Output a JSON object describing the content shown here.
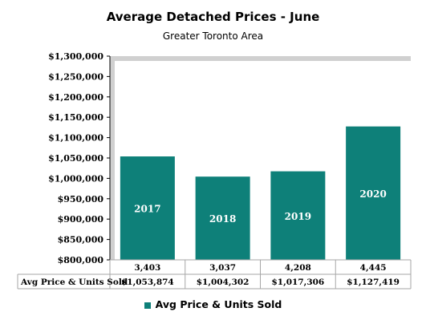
{
  "chart_data": {
    "type": "bar",
    "title": "Average Detached Prices - June",
    "subtitle": "Greater Toronto Area",
    "categories": [
      "2017",
      "2018",
      "2019",
      "2020"
    ],
    "series": [
      {
        "name": "Avg Price & Units Sold",
        "values": [
          1053874,
          1004302,
          1017306,
          1127419
        ],
        "value_labels": [
          "$1,053,874",
          "$1,004,302",
          "$1,017,306",
          "$1,127,419"
        ]
      }
    ],
    "units_sold": [
      "3,403",
      "3,037",
      "4,208",
      "4,445"
    ],
    "table_row_label": "Avg Price & Units Sold",
    "ylim": [
      800000,
      1300000
    ],
    "ytick_values": [
      800000,
      850000,
      900000,
      950000,
      1000000,
      1050000,
      1100000,
      1150000,
      1200000,
      1250000,
      1300000
    ],
    "ytick_labels": [
      "$800,000",
      "$850,000",
      "$900,000",
      "$950,000",
      "$1,000,000",
      "$1,050,000",
      "$1,100,000",
      "$1,150,000",
      "$1,200,000",
      "$1,250,000",
      "$1,300,000"
    ],
    "grid": false,
    "legend": "bottom",
    "colors": {
      "bar": "#0e8079",
      "shadow": "#d0d0d0",
      "axis": "#000000",
      "table_border": "#a6a6a6"
    }
  }
}
